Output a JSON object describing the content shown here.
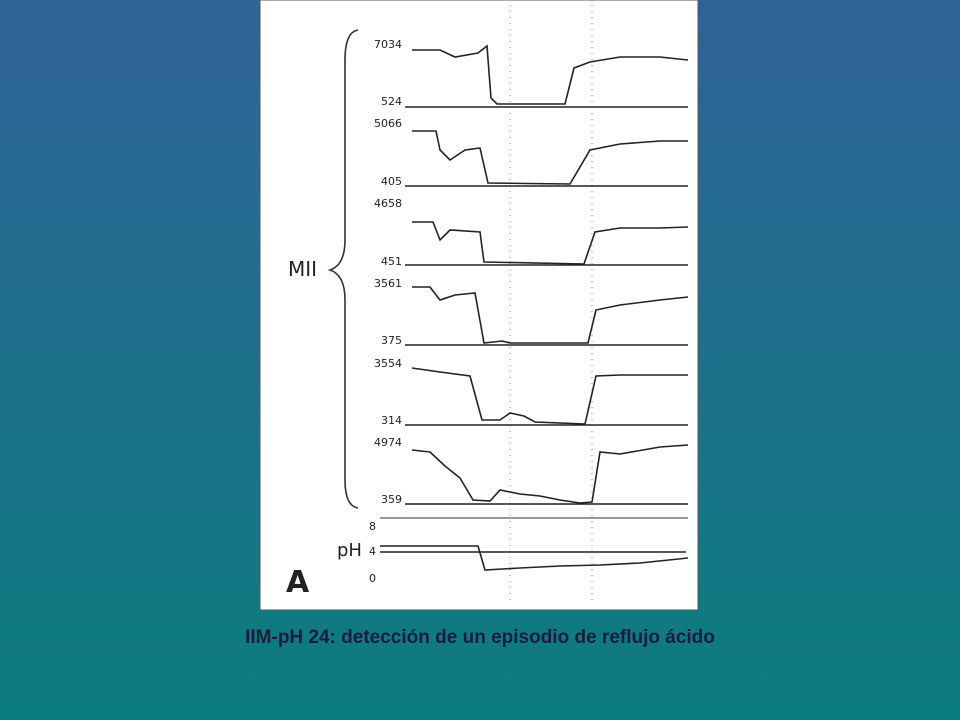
{
  "figure": {
    "group_label": "MII",
    "ph_label": "pH",
    "panel_label": "A",
    "channels": [
      {
        "top": "7034",
        "bottom": "524"
      },
      {
        "top": "5066",
        "bottom": "405"
      },
      {
        "top": "4658",
        "bottom": "451"
      },
      {
        "top": "3561",
        "bottom": "375"
      },
      {
        "top": "3554",
        "bottom": "314"
      },
      {
        "top": "4974",
        "bottom": "359"
      }
    ],
    "ph_ticks": [
      "8",
      "4",
      "0"
    ]
  },
  "caption": "IIM-pH 24: detección de un episodio de reflujo ácido"
}
